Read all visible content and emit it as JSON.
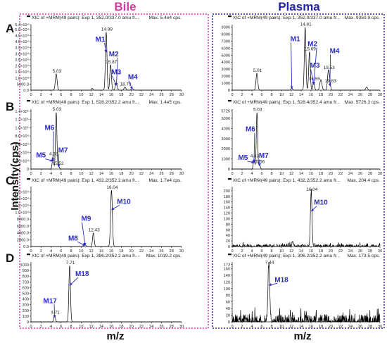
{
  "figure": {
    "left_header": "Bile",
    "right_header": "Plasma",
    "ylabel": "Intensity(cps)",
    "xlabel_left": "m/z",
    "xlabel_right": "m/z",
    "row_labels": [
      "A",
      "B",
      "C",
      "D"
    ],
    "colors": {
      "bile": "#d63a9e",
      "plasma": "#2222a8",
      "trace": "#000000",
      "marker": "#2b2bc8"
    }
  },
  "chart_data": [
    {
      "type": "line",
      "panel": "A-bile",
      "title": "XIC of +MRM(49 pairs): Exp 1, 352.0/337.0 amu fr...",
      "max_label": "Max. 5.4e4 cps.",
      "xlim": [
        0,
        30
      ],
      "ylim": [
        0,
        54000
      ],
      "yticks": [
        0,
        5000,
        10000,
        15000,
        20000,
        25000,
        30000,
        35000,
        40000,
        45000,
        50000,
        54000
      ],
      "yticklabels": [
        "0.0",
        "5000.0",
        "1.0×10⁴",
        "1.5×10⁴",
        "2.0×10⁴",
        "2.5×10⁴",
        "3.0×10⁴",
        "3.5×10⁴",
        "4.0×10⁴",
        "4.5×10⁴",
        "5.0×10⁴",
        "5.4×10⁴"
      ],
      "peaks": [
        {
          "x": 5.03,
          "y": 13500,
          "w": 0.25,
          "label": "5.03"
        },
        {
          "x": 12.2,
          "y": 1500,
          "w": 0.2,
          "label": ""
        },
        {
          "x": 14.99,
          "y": 48000,
          "w": 0.22,
          "label": "14.99"
        },
        {
          "x": 15.87,
          "y": 21000,
          "w": 0.22,
          "label": "15.87"
        },
        {
          "x": 17.0,
          "y": 6000,
          "w": 0.25,
          "label": ""
        },
        {
          "x": 18.73,
          "y": 2500,
          "w": 0.25,
          "label": "18.73"
        },
        {
          "x": 20.2,
          "y": 1200,
          "w": 0.3,
          "label": ""
        }
      ],
      "markers": [
        {
          "name": "M1",
          "x": 13.8,
          "y": 40000
        },
        {
          "name": "M2",
          "x": 16.5,
          "y": 28000
        },
        {
          "name": "M3",
          "x": 17.0,
          "y": 13000
        },
        {
          "name": "M4",
          "x": 20.3,
          "y": 9000
        }
      ]
    },
    {
      "type": "line",
      "panel": "A-plasma",
      "title": "XIC of +MRM(49 pairs): Exp 1, 352.0/337.0 amu fr...",
      "max_label": "Max. 9350.9 cps.",
      "xlim": [
        0,
        30
      ],
      "ylim": [
        0,
        9350
      ],
      "yticks": [
        0,
        1000,
        2000,
        3000,
        4000,
        5000,
        6000,
        7000,
        8000,
        9000
      ],
      "yticklabels": [
        "0",
        "1000",
        "2000",
        "3000",
        "4000",
        "5000",
        "6000",
        "7000",
        "8000",
        "9000"
      ],
      "peaks": [
        {
          "x": 5.01,
          "y": 2400,
          "w": 0.25,
          "label": "5.01"
        },
        {
          "x": 12.1,
          "y": 300,
          "w": 0.2,
          "label": ""
        },
        {
          "x": 14.81,
          "y": 9000,
          "w": 0.22,
          "label": "14.81"
        },
        {
          "x": 15.69,
          "y": 5500,
          "w": 0.22,
          "label": "15.69"
        },
        {
          "x": 16.55,
          "y": 1200,
          "w": 0.22,
          "label": "16.55"
        },
        {
          "x": 18.0,
          "y": 1500,
          "w": 0.3,
          "label": ""
        },
        {
          "x": 19.53,
          "y": 2800,
          "w": 0.25,
          "label": "19.53"
        },
        {
          "x": 19.83,
          "y": 900,
          "w": 0.2,
          "label": "19.83"
        },
        {
          "x": 27.3,
          "y": 450,
          "w": 0.25,
          "label": ""
        }
      ],
      "markers": [
        {
          "name": "M1",
          "x": 12.8,
          "y": 7000
        },
        {
          "name": "M2",
          "x": 16.3,
          "y": 6300
        },
        {
          "name": "M3",
          "x": 16.8,
          "y": 3200
        },
        {
          "name": "M4",
          "x": 20.8,
          "y": 5300
        }
      ]
    },
    {
      "type": "line",
      "panel": "B-bile",
      "title": "XIC of +MRM(49 pairs): Exp 1, 528.2/352.2 amu fr...",
      "max_label": "Max. 1.4e5 cps.",
      "xlim": [
        0,
        30
      ],
      "ylim": [
        0,
        145000
      ],
      "yticks": [
        0,
        20000,
        40000,
        60000,
        80000,
        100000,
        120000,
        140000
      ],
      "yticklabels": [
        "0",
        "2.0×10⁴",
        "4.0×10⁴",
        "6.0×10⁴",
        "8.0×10⁴",
        "1.0×10⁵",
        "1.2×10⁵",
        "1.4×10⁵"
      ],
      "peaks": [
        {
          "x": 4.38,
          "y": 30000,
          "w": 0.2,
          "label": "4.38"
        },
        {
          "x": 5.03,
          "y": 138000,
          "w": 0.2,
          "label": "5.03"
        },
        {
          "x": 5.52,
          "y": 7000,
          "w": 0.2,
          "label": "5.52"
        }
      ],
      "markers": [
        {
          "name": "M6",
          "x": 3.7,
          "y": 95000
        },
        {
          "name": "M5",
          "x": 2.0,
          "y": 28000
        },
        {
          "name": "M7",
          "x": 6.4,
          "y": 40000
        }
      ]
    },
    {
      "type": "line",
      "panel": "B-plasma",
      "title": "XIC of +MRM(49 pairs): Exp 1, 528.4/352.4 amu fr...",
      "max_label": "Max. 5726.3 cps.",
      "xlim": [
        0,
        30
      ],
      "ylim": [
        0,
        5900
      ],
      "yticks": [
        0,
        1000,
        2000,
        3000,
        4000,
        5000,
        5725
      ],
      "yticklabels": [
        "0",
        "1000",
        "2000",
        "3000",
        "4000",
        "5000",
        "5725"
      ],
      "peaks": [
        {
          "x": 4.43,
          "y": 1000,
          "w": 0.2,
          "label": "4.43"
        },
        {
          "x": 5.03,
          "y": 5600,
          "w": 0.2,
          "label": "5.03"
        },
        {
          "x": 5.56,
          "y": 450,
          "w": 0.2,
          "label": "5.56"
        }
      ],
      "markers": [
        {
          "name": "M6",
          "x": 3.7,
          "y": 3700
        },
        {
          "name": "M5",
          "x": 2.2,
          "y": 900
        },
        {
          "name": "M7",
          "x": 6.4,
          "y": 1100
        }
      ]
    },
    {
      "type": "line",
      "panel": "C-bile",
      "title": "XIC of +MRM(49 pairs): Exp 1, 432.2/352.2 amu fr...",
      "max_label": "Max. 1.7e4 cps.",
      "xlim": [
        0,
        30
      ],
      "ylim": [
        0,
        17500
      ],
      "yticks": [
        0,
        2000,
        4000,
        6000,
        8000,
        10000,
        12000,
        14000,
        16000
      ],
      "yticklabels": [
        "0.0",
        "2000.0",
        "4000.0",
        "6000.0",
        "8000.0",
        "1.0×10⁴",
        "1.2×10⁴",
        "1.4×10⁴",
        "1.6×10⁴"
      ],
      "peaks": [
        {
          "x": 10.8,
          "y": 500,
          "w": 0.25,
          "label": ""
        },
        {
          "x": 12.43,
          "y": 4000,
          "w": 0.22,
          "label": "12.43"
        },
        {
          "x": 16.04,
          "y": 16500,
          "w": 0.25,
          "label": "16.04"
        }
      ],
      "markers": [
        {
          "name": "M10",
          "x": 18.5,
          "y": 12500
        },
        {
          "name": "M9",
          "x": 11.0,
          "y": 7500
        },
        {
          "name": "M8",
          "x": 8.4,
          "y": 1800
        }
      ]
    },
    {
      "type": "line",
      "panel": "C-plasma",
      "title": "XIC of +MRM(49 pairs): Exp 1, 432.2/352.2 amu fr...",
      "max_label": "Max. 204.4 cps.",
      "xlim": [
        0,
        30
      ],
      "ylim": [
        0,
        215
      ],
      "yticks": [
        0,
        20,
        40,
        60,
        80,
        100,
        120,
        140,
        160,
        180,
        200
      ],
      "yticklabels": [
        "0",
        "20",
        "40",
        "60",
        "80",
        "100",
        "120",
        "140",
        "160",
        "180",
        "200"
      ],
      "noise": 8,
      "peaks": [
        {
          "x": 12.3,
          "y": 18,
          "w": 0.2,
          "label": ""
        },
        {
          "x": 16.04,
          "y": 195,
          "w": 0.22,
          "label": "16.04"
        }
      ],
      "markers": [
        {
          "name": "M10",
          "x": 18.0,
          "y": 150
        }
      ]
    },
    {
      "type": "line",
      "panel": "D-bile",
      "title": "XIC of +MRM(49 pairs): Exp 1, 396.2/352.2 amu fr...",
      "max_label": "Max. 1019.2 cps.",
      "xlim": [
        0,
        30
      ],
      "ylim": [
        0,
        1050
      ],
      "yticks": [
        0,
        100,
        200,
        300,
        400,
        500,
        600,
        700,
        800,
        900,
        1000
      ],
      "yticklabels": [
        "0",
        "100",
        "200",
        "300",
        "400",
        "500",
        "600",
        "700",
        "800",
        "900",
        "1000"
      ],
      "peaks": [
        {
          "x": 4.71,
          "y": 120,
          "w": 0.22,
          "label": "4.71"
        },
        {
          "x": 7.71,
          "y": 990,
          "w": 0.22,
          "label": "7.71"
        }
      ],
      "markers": [
        {
          "name": "M18",
          "x": 10.2,
          "y": 800
        },
        {
          "name": "M17",
          "x": 3.8,
          "y": 330
        }
      ]
    },
    {
      "type": "line",
      "panel": "D-plasma",
      "title": "XIC of +MRM(49 pairs): Exp 1, 396.2/352.2 amu fr...",
      "max_label": "Max. 173.5 cps.",
      "xlim": [
        0,
        30
      ],
      "ylim": [
        0,
        180
      ],
      "yticks": [
        0,
        20,
        40,
        60,
        80,
        100,
        120,
        140,
        160,
        173
      ],
      "yticklabels": [
        "0",
        "20",
        "40",
        "60",
        "80",
        "100",
        "120",
        "140",
        "160",
        "173"
      ],
      "noise": 22,
      "peaks": [
        {
          "x": 7.44,
          "y": 170,
          "w": 0.25,
          "label": "7.44"
        }
      ],
      "markers": [
        {
          "name": "M18",
          "x": 10.0,
          "y": 120
        }
      ]
    }
  ]
}
